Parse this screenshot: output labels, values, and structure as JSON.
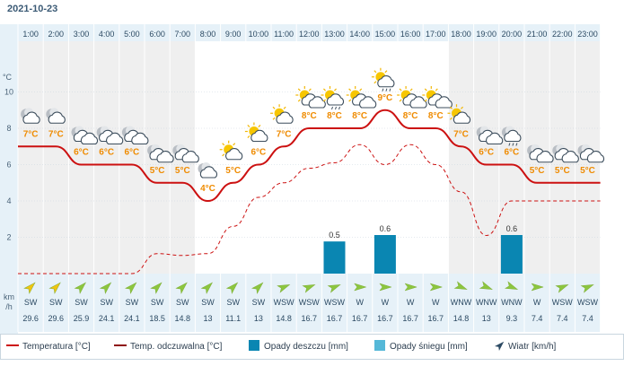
{
  "date": "2021-10-23",
  "colors": {
    "temperature": "#cc1111",
    "feels_like": "#cc1111",
    "rain": "#0a86b2",
    "snow": "#55b8d8",
    "wind_arrow_day": "#8cc63f",
    "wind_arrow_night": "#f1c40f",
    "label_orange": "#ef8b00",
    "panel_blue": "#e6f1f8",
    "grid": "#c9d6df"
  },
  "chart_data": {
    "type": "line",
    "x": [
      "1:00",
      "2:00",
      "3:00",
      "4:00",
      "5:00",
      "6:00",
      "7:00",
      "8:00",
      "9:00",
      "10:00",
      "11:00",
      "12:00",
      "13:00",
      "14:00",
      "15:00",
      "16:00",
      "17:00",
      "18:00",
      "19:00",
      "20:00",
      "21:00",
      "22:00",
      "23:00"
    ],
    "y_axis": {
      "unit": "°C",
      "ticks": [
        2,
        4,
        6,
        8,
        10
      ],
      "ylim": [
        0,
        12
      ]
    },
    "series": [
      {
        "name": "Temperatura [°C]",
        "style": "solid",
        "values": [
          7,
          7,
          6,
          6,
          6,
          5,
          5,
          4,
          5,
          6,
          7,
          8,
          8,
          8,
          9,
          8,
          8,
          7,
          6,
          6,
          5,
          5,
          5
        ]
      },
      {
        "name": "Temp. odczuwalna [°C]",
        "style": "dashed",
        "values": [
          0,
          0,
          0,
          0,
          0,
          1.1,
          1,
          1.1,
          2.6,
          4.2,
          5,
          5.8,
          6.1,
          7.1,
          6,
          7.1,
          6,
          4.5,
          2.1,
          4,
          4,
          4,
          4
        ]
      },
      {
        "name": "Opady deszczu [mm]",
        "type": "bar",
        "values": [
          0,
          0,
          0,
          0,
          0,
          0,
          0,
          0,
          0,
          0,
          0,
          0,
          0.5,
          0,
          0.6,
          0,
          0,
          0,
          0,
          0.6,
          0,
          0,
          0
        ]
      },
      {
        "name": "Opady śniegu [mm]",
        "type": "bar",
        "values": [
          0,
          0,
          0,
          0,
          0,
          0,
          0,
          0,
          0,
          0,
          0,
          0,
          0,
          0,
          0,
          0,
          0,
          0,
          0,
          0,
          0,
          0,
          0
        ]
      }
    ],
    "temp_labels": [
      "7°C",
      "7°C",
      "6°C",
      "6°C",
      "6°C",
      "5°C",
      "5°C",
      "4°C",
      "5°C",
      "6°C",
      "7°C",
      "8°C",
      "8°C",
      "8°C",
      "9°C",
      "8°C",
      "8°C",
      "7°C",
      "6°C",
      "6°C",
      "5°C",
      "5°C",
      "5°C"
    ],
    "rain_labels": [
      {
        "hour_index": 12,
        "label": "0.5"
      },
      {
        "hour_index": 14,
        "label": "0.6"
      },
      {
        "hour_index": 19,
        "label": "0.6"
      }
    ],
    "weather_icons": [
      "moon-cloud-icon",
      "moon-cloud-icon",
      "moon-clouds-icon",
      "moon-clouds-icon",
      "moon-clouds-icon",
      "moon-clouds-icon",
      "moon-clouds-icon",
      "moon-cloud-icon",
      "sun-cloud-icon",
      "sun-cloud-icon",
      "sun-cloud-icon",
      "sun-clouds-icon",
      "sun-rain-icon",
      "sun-clouds-icon",
      "sun-rain-icon",
      "sun-clouds-icon",
      "sun-clouds-icon",
      "sun-cloud-icon",
      "moon-clouds-icon",
      "moon-rain-icon",
      "moon-clouds-icon",
      "moon-clouds-icon",
      "moon-clouds-icon"
    ],
    "night_hours": [
      0,
      1,
      2,
      3,
      4,
      5,
      6,
      17,
      18,
      19,
      20,
      21,
      22
    ],
    "wind": {
      "unit_line1": "km",
      "unit_line2": "/h",
      "directions": [
        "SW",
        "SW",
        "SW",
        "SW",
        "SW",
        "SW",
        "SW",
        "SW",
        "SW",
        "SW",
        "WSW",
        "WSW",
        "WSW",
        "W",
        "W",
        "W",
        "W",
        "WNW",
        "WNW",
        "WNW",
        "W",
        "WSW",
        "WSW"
      ],
      "speeds": [
        "29.6",
        "29.6",
        "25.9",
        "24.1",
        "24.1",
        "18.5",
        "14.8",
        "13",
        "11.1",
        "13",
        "14.8",
        "16.7",
        "16.7",
        "16.7",
        "16.7",
        "16.7",
        "16.7",
        "14.8",
        "13",
        "9.3",
        "7.4",
        "7.4",
        "7.4"
      ]
    },
    "legend": [
      {
        "label": "Temperatura [°C]",
        "kind": "line"
      },
      {
        "label": "Temp. odczuwalna [°C]",
        "kind": "line-dark"
      },
      {
        "label": "Opady deszczu [mm]",
        "kind": "rain-box"
      },
      {
        "label": "Opady śniegu [mm]",
        "kind": "snow-box"
      },
      {
        "label": "Wiatr [km/h]",
        "kind": "arrow"
      }
    ]
  }
}
